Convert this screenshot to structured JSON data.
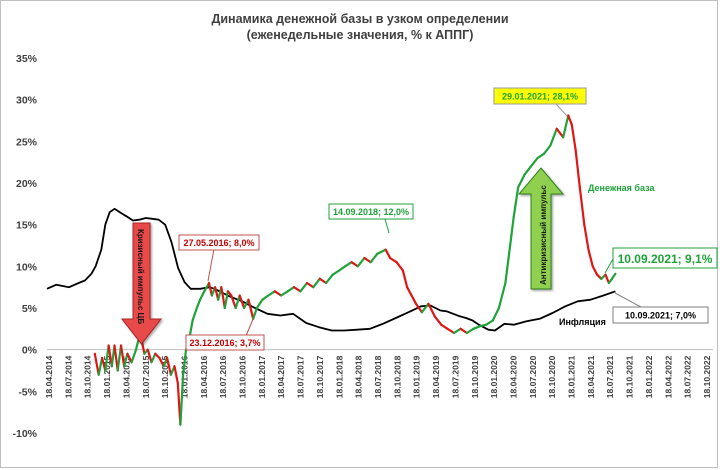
{
  "chart_data": {
    "type": "line",
    "title": "Динамика денежной базы в узком определении",
    "subtitle": "(еженедельные значения, % к АППГ)",
    "xlabel": "",
    "ylabel": "",
    "ylim": [
      -10,
      35
    ],
    "xlim": [
      "2014-04-18",
      "2022-12-18"
    ],
    "yticks": [
      35,
      30,
      25,
      20,
      15,
      10,
      5,
      0,
      -5,
      -10
    ],
    "ytick_labels": [
      "35%",
      "30%",
      "25%",
      "20%",
      "15%",
      "10%",
      "5%",
      "0%",
      "-5%",
      "-10%"
    ],
    "xtick_labels": [
      "18.04.2014",
      "18.07.2014",
      "18.10.2014",
      "18.01.2015",
      "18.04.2015",
      "18.07.2015",
      "18.10.2015",
      "18.01.2016",
      "18.04.2016",
      "18.07.2016",
      "18.10.2016",
      "18.01.2017",
      "18.04.2017",
      "18.07.2017",
      "18.10.2017",
      "18.01.2018",
      "18.04.2018",
      "18.07.2018",
      "18.10.2018",
      "18.01.2019",
      "18.04.2019",
      "18.07.2019",
      "18.10.2019",
      "18.01.2020",
      "18.04.2020",
      "18.07.2020",
      "18.10.2020",
      "18.01.2021",
      "18.04.2021",
      "18.07.2021",
      "18.10.2021",
      "18.01.2022",
      "18.04.2022",
      "18.07.2022",
      "18.10.2022"
    ],
    "grid": false,
    "legend": "none",
    "series": [
      {
        "name": "Денежная база",
        "colors": {
          "growth": "#1fa23a",
          "decline": "#e01515"
        },
        "points": [
          [
            "2014-12-01",
            -0.5
          ],
          [
            "2014-12-20",
            -3.0
          ],
          [
            "2015-01-05",
            -1.0
          ],
          [
            "2015-01-20",
            -2.5
          ],
          [
            "2015-02-05",
            0.5
          ],
          [
            "2015-02-20",
            -2.0
          ],
          [
            "2015-03-05",
            0.5
          ],
          [
            "2015-03-20",
            -2.5
          ],
          [
            "2015-04-05",
            0.5
          ],
          [
            "2015-04-20",
            -2.0
          ],
          [
            "2015-05-05",
            -0.5
          ],
          [
            "2015-05-25",
            -1.5
          ],
          [
            "2015-06-15",
            0.0
          ],
          [
            "2015-07-05",
            2.0
          ],
          [
            "2015-07-25",
            -0.5
          ],
          [
            "2015-08-10",
            0.0
          ],
          [
            "2015-08-28",
            -1.5
          ],
          [
            "2015-09-15",
            -0.5
          ],
          [
            "2015-10-05",
            -1.0
          ],
          [
            "2015-10-25",
            -2.0
          ],
          [
            "2015-11-10",
            -1.0
          ],
          [
            "2015-11-28",
            -3.0
          ],
          [
            "2015-12-15",
            -2.0
          ],
          [
            "2015-12-31",
            -4.0
          ],
          [
            "2016-01-12",
            -9.0
          ],
          [
            "2016-01-25",
            -3.0
          ],
          [
            "2016-02-08",
            0.0
          ],
          [
            "2016-02-25",
            1.5
          ],
          [
            "2016-03-10",
            3.5
          ],
          [
            "2016-03-30",
            5.0
          ],
          [
            "2016-04-15",
            6.0
          ],
          [
            "2016-05-05",
            7.0
          ],
          [
            "2016-05-27",
            8.0
          ],
          [
            "2016-06-10",
            6.5
          ],
          [
            "2016-06-25",
            7.5
          ],
          [
            "2016-07-10",
            6.0
          ],
          [
            "2016-07-25",
            7.5
          ],
          [
            "2016-08-10",
            5.0
          ],
          [
            "2016-08-25",
            7.0
          ],
          [
            "2016-09-10",
            6.5
          ],
          [
            "2016-10-01",
            5.0
          ],
          [
            "2016-10-20",
            6.5
          ],
          [
            "2016-11-10",
            5.0
          ],
          [
            "2016-12-01",
            6.0
          ],
          [
            "2016-12-23",
            3.7
          ],
          [
            "2017-01-10",
            5.0
          ],
          [
            "2017-02-05",
            6.0
          ],
          [
            "2017-03-05",
            6.5
          ],
          [
            "2017-04-05",
            7.0
          ],
          [
            "2017-05-05",
            6.5
          ],
          [
            "2017-06-05",
            7.0
          ],
          [
            "2017-07-05",
            7.5
          ],
          [
            "2017-08-05",
            7.0
          ],
          [
            "2017-09-05",
            8.0
          ],
          [
            "2017-10-05",
            7.5
          ],
          [
            "2017-11-05",
            8.5
          ],
          [
            "2017-12-05",
            8.0
          ],
          [
            "2018-01-05",
            9.0
          ],
          [
            "2018-02-05",
            9.5
          ],
          [
            "2018-03-05",
            10.0
          ],
          [
            "2018-04-05",
            10.5
          ],
          [
            "2018-05-05",
            10.0
          ],
          [
            "2018-06-05",
            11.0
          ],
          [
            "2018-07-05",
            10.5
          ],
          [
            "2018-08-05",
            11.5
          ],
          [
            "2018-09-14",
            12.0
          ],
          [
            "2018-10-05",
            11.0
          ],
          [
            "2018-11-05",
            10.5
          ],
          [
            "2018-12-05",
            9.5
          ],
          [
            "2018-12-25",
            7.5
          ],
          [
            "2019-01-15",
            6.5
          ],
          [
            "2019-02-05",
            5.5
          ],
          [
            "2019-03-05",
            4.5
          ],
          [
            "2019-04-05",
            5.5
          ],
          [
            "2019-05-05",
            4.0
          ],
          [
            "2019-06-05",
            3.0
          ],
          [
            "2019-07-05",
            2.5
          ],
          [
            "2019-08-05",
            2.0
          ],
          [
            "2019-09-05",
            2.5
          ],
          [
            "2019-10-05",
            2.0
          ],
          [
            "2019-11-05",
            2.5
          ],
          [
            "2019-12-05",
            2.8
          ],
          [
            "2020-01-05",
            3.0
          ],
          [
            "2020-02-05",
            3.5
          ],
          [
            "2020-03-05",
            5.0
          ],
          [
            "2020-04-05",
            8.0
          ],
          [
            "2020-04-25",
            12.0
          ],
          [
            "2020-05-15",
            16.0
          ],
          [
            "2020-06-05",
            19.5
          ],
          [
            "2020-07-05",
            21.0
          ],
          [
            "2020-08-05",
            22.0
          ],
          [
            "2020-09-05",
            23.0
          ],
          [
            "2020-10-05",
            23.5
          ],
          [
            "2020-11-05",
            24.5
          ],
          [
            "2020-12-05",
            26.5
          ],
          [
            "2021-01-05",
            25.5
          ],
          [
            "2021-01-29",
            28.1
          ],
          [
            "2021-02-15",
            27.0
          ],
          [
            "2021-03-05",
            24.0
          ],
          [
            "2021-03-25",
            19.5
          ],
          [
            "2021-04-15",
            15.0
          ],
          [
            "2021-05-05",
            12.0
          ],
          [
            "2021-05-25",
            10.0
          ],
          [
            "2021-06-15",
            9.0
          ],
          [
            "2021-07-05",
            8.5
          ],
          [
            "2021-07-25",
            9.0
          ],
          [
            "2021-08-10",
            8.0
          ],
          [
            "2021-08-25",
            8.5
          ],
          [
            "2021-09-10",
            9.1
          ]
        ]
      },
      {
        "name": "Инфляция",
        "color": "#000000",
        "points": [
          [
            "2014-04-18",
            7.3
          ],
          [
            "2014-06-01",
            7.8
          ],
          [
            "2014-08-01",
            7.5
          ],
          [
            "2014-09-15",
            8.0
          ],
          [
            "2014-10-15",
            8.3
          ],
          [
            "2014-11-15",
            9.1
          ],
          [
            "2014-12-05",
            10.0
          ],
          [
            "2015-01-01",
            12.0
          ],
          [
            "2015-01-20",
            15.0
          ],
          [
            "2015-02-10",
            16.5
          ],
          [
            "2015-03-05",
            16.9
          ],
          [
            "2015-04-05",
            16.4
          ],
          [
            "2015-05-01",
            16.0
          ],
          [
            "2015-06-01",
            15.5
          ],
          [
            "2015-07-01",
            15.6
          ],
          [
            "2015-08-01",
            15.8
          ],
          [
            "2015-09-01",
            15.7
          ],
          [
            "2015-10-01",
            15.6
          ],
          [
            "2015-11-01",
            15.0
          ],
          [
            "2015-12-01",
            12.9
          ],
          [
            "2016-01-01",
            9.8
          ],
          [
            "2016-02-01",
            8.1
          ],
          [
            "2016-03-01",
            7.3
          ],
          [
            "2016-04-15",
            7.3
          ],
          [
            "2016-06-01",
            7.5
          ],
          [
            "2016-07-01",
            7.2
          ],
          [
            "2016-08-01",
            6.8
          ],
          [
            "2016-09-01",
            6.4
          ],
          [
            "2016-10-01",
            6.1
          ],
          [
            "2016-11-01",
            5.8
          ],
          [
            "2016-12-01",
            5.4
          ],
          [
            "2017-01-01",
            5.0
          ],
          [
            "2017-03-01",
            4.3
          ],
          [
            "2017-05-01",
            4.1
          ],
          [
            "2017-07-01",
            4.3
          ],
          [
            "2017-09-01",
            3.2
          ],
          [
            "2017-11-01",
            2.7
          ],
          [
            "2018-01-01",
            2.3
          ],
          [
            "2018-03-01",
            2.3
          ],
          [
            "2018-05-01",
            2.4
          ],
          [
            "2018-07-01",
            2.5
          ],
          [
            "2018-09-01",
            3.1
          ],
          [
            "2018-11-01",
            3.8
          ],
          [
            "2019-01-01",
            4.5
          ],
          [
            "2019-03-01",
            5.2
          ],
          [
            "2019-04-15",
            5.3
          ],
          [
            "2019-06-01",
            4.7
          ],
          [
            "2019-07-01",
            4.6
          ],
          [
            "2019-08-01",
            4.3
          ],
          [
            "2019-09-01",
            4.0
          ],
          [
            "2019-10-01",
            3.8
          ],
          [
            "2019-11-01",
            3.5
          ],
          [
            "2019-12-01",
            3.0
          ],
          [
            "2020-01-15",
            2.4
          ],
          [
            "2020-02-15",
            2.3
          ],
          [
            "2020-04-01",
            3.1
          ],
          [
            "2020-05-15",
            3.0
          ],
          [
            "2020-07-15",
            3.4
          ],
          [
            "2020-09-15",
            3.7
          ],
          [
            "2020-11-15",
            4.4
          ],
          [
            "2021-01-15",
            5.2
          ],
          [
            "2021-03-15",
            5.8
          ],
          [
            "2021-05-15",
            6.0
          ],
          [
            "2021-07-15",
            6.5
          ],
          [
            "2021-09-10",
            7.0
          ]
        ]
      }
    ],
    "annotations": [
      {
        "text": "29.01.2021; 28,1%",
        "date": "2021-01-29",
        "value": 28.1
      },
      {
        "text": "14.09.2018; 12,0%",
        "date": "2018-09-14",
        "value": 12.0
      },
      {
        "text": "27.05.2016; 8,0%",
        "date": "2016-05-27",
        "value": 8.0
      },
      {
        "text": "23.12.2016; 3,7%",
        "date": "2016-12-23",
        "value": 3.7
      },
      {
        "text": "10.09.2021; 9,1%",
        "date": "2021-09-10",
        "value": 9.1
      },
      {
        "text": "10.09.2021; 7,0%",
        "date": "2021-09-10",
        "value": 7.0
      }
    ],
    "series_labels": [
      {
        "text": "Денежная база",
        "color": "#1fa23a"
      },
      {
        "text": "Инфляция",
        "color": "#000000"
      }
    ],
    "arrows": [
      {
        "text": "Кризисный импульс ЦБ",
        "direction": "down",
        "color": "#e84a4a"
      },
      {
        "text": "Антикризисный импульс",
        "direction": "up",
        "color": "#8fd14f"
      }
    ]
  }
}
